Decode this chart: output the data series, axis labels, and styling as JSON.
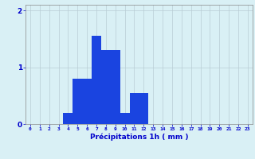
{
  "categories": [
    0,
    1,
    2,
    3,
    4,
    5,
    6,
    7,
    8,
    9,
    10,
    11,
    12,
    13,
    14,
    15,
    16,
    17,
    18,
    19,
    20,
    21,
    22,
    23
  ],
  "values": [
    0,
    0,
    0,
    0,
    0.2,
    0.8,
    0.8,
    1.55,
    1.3,
    1.3,
    0.2,
    0.55,
    0.55,
    0,
    0,
    0,
    0,
    0,
    0,
    0,
    0,
    0,
    0,
    0
  ],
  "bar_color": "#1a44e0",
  "background_color": "#d9f0f5",
  "grid_color": "#b8cdd4",
  "xlabel": "Précipitations 1h ( mm )",
  "xlabel_color": "#0000cc",
  "tick_color": "#0000cc",
  "ylim": [
    0,
    2.1
  ],
  "yticks": [
    0,
    1,
    2
  ],
  "bar_width": 1.0
}
